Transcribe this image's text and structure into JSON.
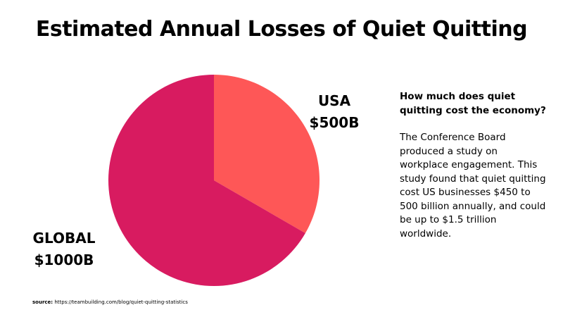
{
  "chart_data": {
    "type": "pie",
    "title": "Estimated Annual Losses of Quiet Quitting",
    "slices": [
      {
        "name": "USA",
        "value": 500,
        "value_label": "$500B",
        "color": "#fe5757"
      },
      {
        "name": "GLOBAL",
        "value": 1000,
        "value_label": "$1000B",
        "color": "#d81b60"
      }
    ]
  },
  "side_panel": {
    "heading": "How much does quiet quitting cost the economy?",
    "body": "The Conference Board produced a study on workplace engagement. This study found that quiet quitting cost US businesses $450 to 500 billion annually, and could be up to $1.5 trillion worldwide."
  },
  "source": {
    "label": "source:",
    "text": "https://teambuilding.com/blog/quiet-quitting-statistics"
  }
}
